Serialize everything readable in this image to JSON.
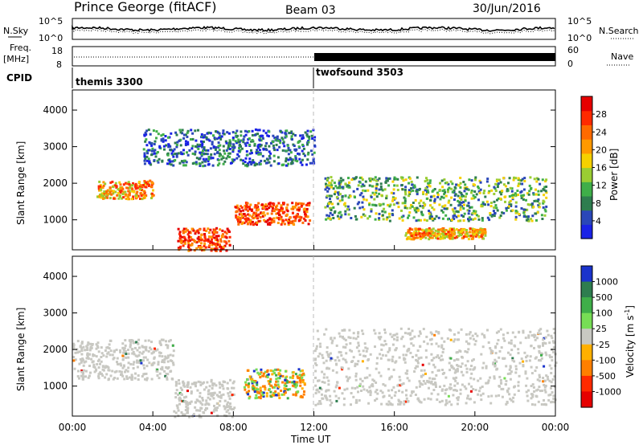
{
  "header": {
    "station": "Prince George (fitACF)",
    "beam": "Beam 03",
    "date": "30/Jun/2016"
  },
  "noise_panel": {
    "left_label": "N.Sky",
    "left_ticks": [
      "10^5",
      "10^0"
    ],
    "right_ticks": [
      "10^5",
      "10^0"
    ],
    "right_label": "N.Search"
  },
  "freq_panel": {
    "label_line1": "Freq.",
    "label_line2": "[MHz]",
    "left_ticks": [
      "18",
      "8"
    ],
    "right_ticks": [
      "60",
      "0"
    ],
    "right_label": "Nave"
  },
  "cpid": {
    "label": "CPID",
    "programs": [
      {
        "name": "themis 3300",
        "start_hour": 0
      },
      {
        "name": "twofsound 3503",
        "start_hour": 12
      }
    ]
  },
  "chart_data": [
    {
      "type": "heatmap",
      "panel": "power",
      "ylabel": "Slant Range [km]",
      "yticks": [
        "1000",
        "2000",
        "3000",
        "4000"
      ],
      "ylim": [
        180,
        4550
      ],
      "x_range_hours": [
        0,
        24
      ],
      "colorbar": {
        "label": "Power [dB]",
        "ticks": [
          "4",
          "8",
          "12",
          "16",
          "20",
          "24",
          "28"
        ],
        "range": [
          0,
          32
        ]
      },
      "scatter_regions": [
        {
          "t0": 1.2,
          "t1": 4.0,
          "r0": 1600,
          "r1": 2100,
          "level": "mid-high"
        },
        {
          "t0": 5.2,
          "t1": 7.8,
          "r0": 180,
          "r1": 800,
          "level": "high"
        },
        {
          "t0": 8.0,
          "t1": 11.8,
          "r0": 900,
          "r1": 1500,
          "level": "high"
        },
        {
          "t0": 12.5,
          "t1": 23.5,
          "r0": 1000,
          "r1": 2200,
          "level": "low-mid"
        },
        {
          "t0": 16.5,
          "t1": 20.5,
          "r0": 500,
          "r1": 800,
          "level": "mid-high"
        },
        {
          "t0": 3.5,
          "t1": 12.0,
          "r0": 2500,
          "r1": 3500,
          "level": "low"
        }
      ]
    },
    {
      "type": "heatmap",
      "panel": "velocity",
      "ylabel": "Slant Range [km]",
      "yticks": [
        "1000",
        "2000",
        "3000",
        "4000"
      ],
      "ylim": [
        180,
        4550
      ],
      "x_range_hours": [
        0,
        24
      ],
      "colorbar": {
        "label": "Velocity [m s^-1]",
        "ticks": [
          "1000",
          "500",
          "100",
          "25",
          "-25",
          "-100",
          "-500",
          "-1000"
        ],
        "colors": [
          "#1a33cc",
          "#2e7d4f",
          "#3fae49",
          "#77dd55",
          "#c8c8c2",
          "#ffb000",
          "#ff7f00",
          "#ff2a00",
          "#e60000"
        ]
      },
      "scatter_regions": [
        {
          "t0": 0.0,
          "t1": 5.0,
          "r0": 1200,
          "r1": 2300,
          "level": "ground"
        },
        {
          "t0": 5.0,
          "t1": 8.0,
          "r0": 180,
          "r1": 1200,
          "level": "ground"
        },
        {
          "t0": 8.5,
          "t1": 11.5,
          "r0": 700,
          "r1": 1500,
          "level": "ionospheric"
        },
        {
          "t0": 12.0,
          "t1": 24.0,
          "r0": 500,
          "r1": 2600,
          "level": "ground"
        }
      ]
    }
  ],
  "time_axis": {
    "ticks": [
      "00:00",
      "04:00",
      "08:00",
      "12:00",
      "16:00",
      "20:00",
      "00:00"
    ],
    "label": "Time UT"
  }
}
